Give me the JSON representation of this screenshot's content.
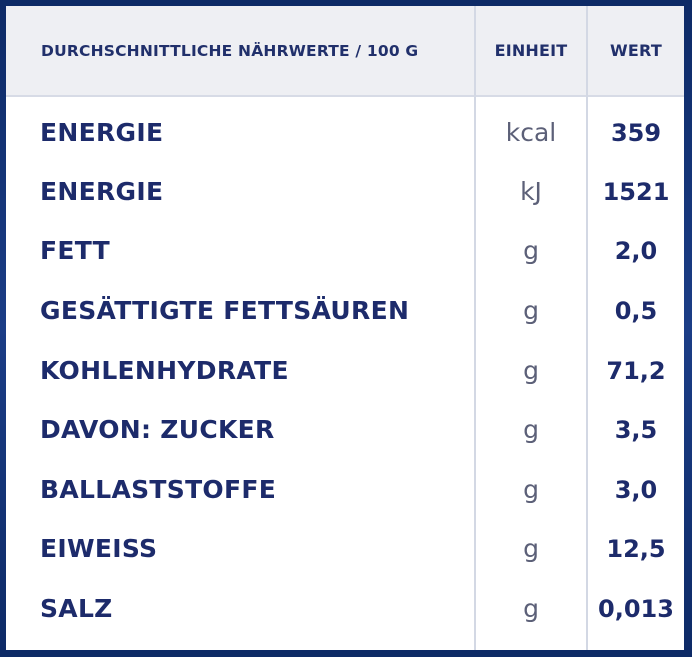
{
  "header": {
    "nutrient_label": "DURCHSCHNITTLICHE NÄHRWERTE / 100 G",
    "unit_label": "EINHEIT",
    "value_label": "WERT"
  },
  "rows": [
    {
      "name": "ENERGIE",
      "unit": "kcal",
      "value": "359"
    },
    {
      "name": "ENERGIE",
      "unit": "kJ",
      "value": "1521"
    },
    {
      "name": "FETT",
      "unit": "g",
      "value": "2,0"
    },
    {
      "name": "GESÄTTIGTE FETTSÄUREN",
      "unit": "g",
      "value": "0,5"
    },
    {
      "name": "KOHLENHYDRATE",
      "unit": "g",
      "value": "71,2"
    },
    {
      "name": "DAVON: ZUCKER",
      "unit": "g",
      "value": "3,5"
    },
    {
      "name": "BALLASTSTOFFE",
      "unit": "g",
      "value": "3,0"
    },
    {
      "name": "EIWEISS",
      "unit": "g",
      "value": "12,5"
    },
    {
      "name": "SALZ",
      "unit": "g",
      "value": "0,013"
    }
  ],
  "colors": {
    "text": "#1d2b6b",
    "header_bg": "#eeeff3",
    "frame": "#0f2c6b"
  }
}
